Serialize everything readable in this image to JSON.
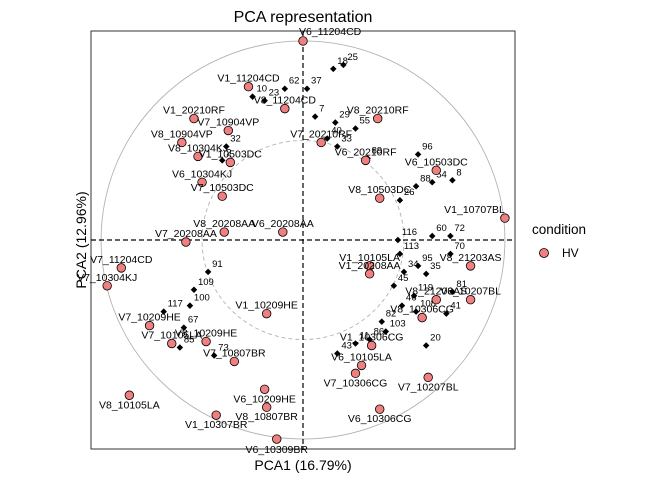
{
  "chart_data": {
    "type": "scatter",
    "title": "PCA representation",
    "xlabel": "PCA1 (16.79%)",
    "ylabel": "PCA2 (12.96%)",
    "legend": {
      "title": "condition",
      "position": "right",
      "entries": [
        {
          "label": "HV",
          "color": "#f08080"
        }
      ]
    },
    "colors": {
      "point": "#f08080",
      "variable": "#000000",
      "circle": "#b3b3b3"
    },
    "xlim": [
      -1.05,
      1.05
    ],
    "ylim": [
      -1.05,
      1.05
    ],
    "circles": [
      1.0,
      0.5
    ],
    "points": [
      {
        "x": 0.0,
        "y": 1.0,
        "label": "V6_11204CD"
      },
      {
        "x": -0.27,
        "y": 0.77,
        "label": "V1_11204CD"
      },
      {
        "x": -0.09,
        "y": 0.66,
        "label": "V8_11204CD"
      },
      {
        "x": -0.54,
        "y": 0.61,
        "label": "V1_20210RF"
      },
      {
        "x": 0.37,
        "y": 0.61,
        "label": "V8_20210RF"
      },
      {
        "x": -0.37,
        "y": 0.55,
        "label": "V7_10904VP"
      },
      {
        "x": -0.6,
        "y": 0.49,
        "label": "V8_10904VP"
      },
      {
        "x": 0.09,
        "y": 0.49,
        "label": "V7_20210RF"
      },
      {
        "x": -0.52,
        "y": 0.42,
        "label": "V8_10304KJ"
      },
      {
        "x": -0.36,
        "y": 0.39,
        "label": "V1_10503DC"
      },
      {
        "x": 0.31,
        "y": 0.4,
        "label": "V6_20210RF"
      },
      {
        "x": 0.66,
        "y": 0.35,
        "label": "V6_10503DC"
      },
      {
        "x": -0.5,
        "y": 0.29,
        "label": "V6_10304KJ"
      },
      {
        "x": -0.4,
        "y": 0.22,
        "label": "V7_10503DC"
      },
      {
        "x": 0.38,
        "y": 0.21,
        "label": "V8_10503DC"
      },
      {
        "x": -0.39,
        "y": 0.04,
        "label": "V8_20208AA"
      },
      {
        "x": -0.1,
        "y": 0.04,
        "label": "V6_20208AA"
      },
      {
        "x": -0.58,
        "y": -0.01,
        "label": "V7_20208AA"
      },
      {
        "x": 1.0,
        "y": 0.11,
        "label": "V1_10707BL"
      },
      {
        "x": -0.9,
        "y": -0.14,
        "label": "V7_11204CD"
      },
      {
        "x": 0.33,
        "y": -0.13,
        "label": "V1_10105LA"
      },
      {
        "x": 0.33,
        "y": -0.17,
        "label": "V1_20208AA"
      },
      {
        "x": 0.83,
        "y": -0.13,
        "label": "V8_21203AS"
      },
      {
        "x": -0.97,
        "y": -0.23,
        "label": "V7_10304KJ"
      },
      {
        "x": 0.66,
        "y": -0.3,
        "label": "V8_21203AS"
      },
      {
        "x": 0.83,
        "y": -0.3,
        "label": "V6_10207BL"
      },
      {
        "x": -0.18,
        "y": -0.37,
        "label": "V1_10209HE"
      },
      {
        "x": -0.76,
        "y": -0.43,
        "label": "V7_10209HE"
      },
      {
        "x": 0.59,
        "y": -0.39,
        "label": "V8_10306CG"
      },
      {
        "x": -0.48,
        "y": -0.51,
        "label": "V8_10209HE"
      },
      {
        "x": -0.65,
        "y": -0.52,
        "label": "V7_10105LA"
      },
      {
        "x": 0.34,
        "y": -0.53,
        "label": "V1_10306CG"
      },
      {
        "x": 0.29,
        "y": -0.63,
        "label": "V6_10105LA"
      },
      {
        "x": -0.34,
        "y": -0.61,
        "label": "V7_10807BR"
      },
      {
        "x": 0.26,
        "y": -0.67,
        "label": "V7_10306CG"
      },
      {
        "x": 0.62,
        "y": -0.69,
        "label": "V7_10207BL"
      },
      {
        "x": -0.19,
        "y": -0.75,
        "label": "V6_10209HE"
      },
      {
        "x": -0.86,
        "y": -0.78,
        "label": "V8_10105LA"
      },
      {
        "x": -0.18,
        "y": -0.84,
        "label": "V8_10807BR"
      },
      {
        "x": 0.38,
        "y": -0.85,
        "label": "V6_10306CG"
      },
      {
        "x": -0.43,
        "y": -0.88,
        "label": "V1_10307BR"
      },
      {
        "x": -0.13,
        "y": -1.0,
        "label": "V6_10309BR"
      }
    ],
    "variables": [
      {
        "x": 0.15,
        "y": 0.86,
        "label": "18"
      },
      {
        "x": 0.2,
        "y": 0.88,
        "label": "25"
      },
      {
        "x": -0.09,
        "y": 0.76,
        "label": "62"
      },
      {
        "x": 0.02,
        "y": 0.76,
        "label": "37"
      },
      {
        "x": -0.25,
        "y": 0.72,
        "label": "10"
      },
      {
        "x": -0.19,
        "y": 0.7,
        "label": "23"
      },
      {
        "x": 0.06,
        "y": 0.62,
        "label": "7"
      },
      {
        "x": 0.16,
        "y": 0.59,
        "label": "29"
      },
      {
        "x": 0.26,
        "y": 0.56,
        "label": "55"
      },
      {
        "x": 0.12,
        "y": 0.51,
        "label": "40"
      },
      {
        "x": -0.38,
        "y": 0.47,
        "label": "32"
      },
      {
        "x": 0.17,
        "y": 0.47,
        "label": "33"
      },
      {
        "x": -0.4,
        "y": 0.4,
        "label": "2"
      },
      {
        "x": 0.32,
        "y": 0.41,
        "label": "89"
      },
      {
        "x": 0.57,
        "y": 0.43,
        "label": "96"
      },
      {
        "x": 0.64,
        "y": 0.29,
        "label": "54"
      },
      {
        "x": 0.56,
        "y": 0.27,
        "label": "88"
      },
      {
        "x": 0.74,
        "y": 0.3,
        "label": "8"
      },
      {
        "x": 0.48,
        "y": 0.2,
        "label": "26"
      },
      {
        "x": 0.64,
        "y": 0.02,
        "label": "60"
      },
      {
        "x": 0.73,
        "y": 0.02,
        "label": "72"
      },
      {
        "x": 0.47,
        "y": 0.0,
        "label": "116"
      },
      {
        "x": 0.48,
        "y": -0.07,
        "label": "113"
      },
      {
        "x": 0.73,
        "y": -0.07,
        "label": "70"
      },
      {
        "x": 0.57,
        "y": -0.13,
        "label": "95"
      },
      {
        "x": 0.5,
        "y": -0.16,
        "label": "34"
      },
      {
        "x": 0.61,
        "y": -0.17,
        "label": "35"
      },
      {
        "x": -0.47,
        "y": -0.16,
        "label": "91"
      },
      {
        "x": -0.54,
        "y": -0.25,
        "label": "109"
      },
      {
        "x": 0.45,
        "y": -0.23,
        "label": "45"
      },
      {
        "x": 0.55,
        "y": -0.28,
        "label": "119"
      },
      {
        "x": 0.74,
        "y": -0.26,
        "label": "81"
      },
      {
        "x": -0.56,
        "y": -0.33,
        "label": "100"
      },
      {
        "x": -0.69,
        "y": -0.36,
        "label": "117"
      },
      {
        "x": 0.71,
        "y": -0.37,
        "label": "41"
      },
      {
        "x": 0.49,
        "y": -0.33,
        "label": "46"
      },
      {
        "x": 0.56,
        "y": -0.36,
        "label": "108"
      },
      {
        "x": 0.39,
        "y": -0.41,
        "label": "82"
      },
      {
        "x": -0.59,
        "y": -0.44,
        "label": "67"
      },
      {
        "x": 0.41,
        "y": -0.46,
        "label": "103"
      },
      {
        "x": 0.33,
        "y": -0.5,
        "label": "86"
      },
      {
        "x": 0.26,
        "y": -0.52,
        "label": "11"
      },
      {
        "x": 0.61,
        "y": -0.53,
        "label": "20"
      },
      {
        "x": -0.61,
        "y": -0.54,
        "label": "85"
      },
      {
        "x": 0.17,
        "y": -0.57,
        "label": "43"
      },
      {
        "x": -0.44,
        "y": -0.58,
        "label": "73"
      }
    ]
  }
}
